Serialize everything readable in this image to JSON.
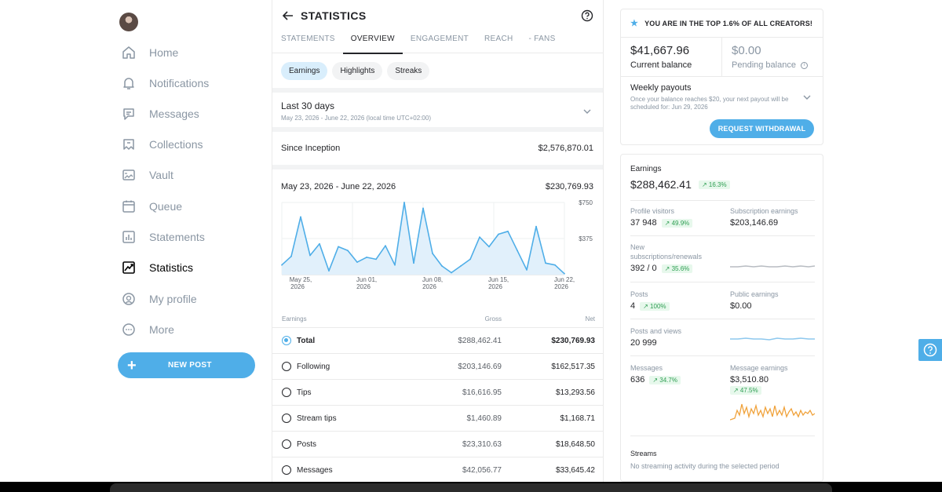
{
  "sidebar": {
    "items": [
      {
        "label": "Home",
        "icon": "home-icon"
      },
      {
        "label": "Notifications",
        "icon": "bell-icon"
      },
      {
        "label": "Messages",
        "icon": "message-icon"
      },
      {
        "label": "Collections",
        "icon": "bookmark-icon"
      },
      {
        "label": "Vault",
        "icon": "image-icon"
      },
      {
        "label": "Queue",
        "icon": "calendar-icon"
      },
      {
        "label": "Statements",
        "icon": "bar-chart-icon"
      },
      {
        "label": "Statistics",
        "icon": "trend-icon",
        "active": true
      },
      {
        "label": "My profile",
        "icon": "profile-icon"
      },
      {
        "label": "More",
        "icon": "more-icon"
      }
    ],
    "new_post": "NEW POST"
  },
  "header": {
    "title": "STATISTICS"
  },
  "tabs": [
    "STATEMENTS",
    "OVERVIEW",
    "ENGAGEMENT",
    "REACH",
    "- FANS"
  ],
  "chips": [
    "Earnings",
    "Highlights",
    "Streaks"
  ],
  "period": {
    "label": "Last 30 days",
    "range": "May 23, 2026 - June 22, 2026 (local time UTC+02:00)"
  },
  "since_inception": {
    "label": "Since Inception",
    "value": "$2,576,870.01"
  },
  "chart_header": {
    "range": "May 23, 2026 - June 22, 2026",
    "value": "$230,769.93"
  },
  "chart_data": {
    "type": "area",
    "title": "",
    "xlabel": "",
    "ylabel": "",
    "ylim": [
      0,
      750
    ],
    "yticks": [
      "$750",
      "$375"
    ],
    "xticks": [
      {
        "line1": "May 25,",
        "line2": "2026",
        "index": 2
      },
      {
        "line1": "Jun 01,",
        "line2": "2026",
        "index": 9
      },
      {
        "line1": "Jun 08,",
        "line2": "2026",
        "index": 16
      },
      {
        "line1": "Jun 15,",
        "line2": "2026",
        "index": 23
      },
      {
        "line1": "Jun 22,",
        "line2": "2026",
        "index": 30
      }
    ],
    "grid": true,
    "color": "#4faee8",
    "values": [
      100,
      190,
      600,
      200,
      320,
      40,
      290,
      250,
      130,
      180,
      160,
      300,
      100,
      750,
      120,
      690,
      220,
      90,
      20,
      90,
      160,
      390,
      290,
      420,
      450,
      250,
      50,
      500,
      120,
      100,
      10
    ]
  },
  "earnings_table": {
    "headers": {
      "name": "Earnings",
      "gross": "Gross",
      "net": "Net"
    },
    "rows": [
      {
        "name": "Total",
        "gross": "$288,462.41",
        "net": "$230,769.93",
        "selected": true
      },
      {
        "name": "Following",
        "gross": "$203,146.69",
        "net": "$162,517.35"
      },
      {
        "name": "Tips",
        "gross": "$16,616.95",
        "net": "$13,293.56"
      },
      {
        "name": "Stream tips",
        "gross": "$1,460.89",
        "net": "$1,168.71"
      },
      {
        "name": "Posts",
        "gross": "$23,310.63",
        "net": "$18,648.50"
      },
      {
        "name": "Messages",
        "gross": "$42,056.77",
        "net": "$33,645.42"
      }
    ]
  },
  "balance": {
    "top_badge": "YOU ARE IN THE TOP 1.6% OF ALL CREATORS!",
    "current_value": "$41,667.96",
    "current_label": "Current balance",
    "pending_value": "$0.00",
    "pending_label": "Pending balance",
    "payout_title": "Weekly payouts",
    "payout_sub": "Once your balance reaches $20, your next payout will be scheduled for: Jun 29, 2026",
    "withdraw_label": "REQUEST WITHDRAWAL"
  },
  "earnings_card": {
    "title": "Earnings",
    "total": "$288,462.41",
    "total_change": "↗ 16.3%",
    "profile_visitors_label": "Profile visitors",
    "profile_visitors_value": "37 948",
    "profile_visitors_change": "↗ 49.9%",
    "subscription_label": "Subscription earnings",
    "subscription_value": "$203,146.69",
    "new_subs_label_1": "New",
    "new_subs_label_2": "subscriptions/renewals",
    "new_subs_value": "392 / 0",
    "new_subs_change": "↗ 35.6%",
    "posts_label": "Posts",
    "posts_value": "4",
    "posts_change": "↗ 100%",
    "public_label": "Public earnings",
    "public_value": "$0.00",
    "posts_views_label": "Posts and views",
    "posts_views_value": "20 999",
    "messages_label": "Messages",
    "messages_value": "636",
    "messages_change": "↗ 34.7%",
    "message_earn_label": "Message earnings",
    "message_earn_value": "$3,510.80",
    "message_earn_change": "↗ 47.5%",
    "streams_label": "Streams",
    "streams_sub": "No streaming activity during the selected period"
  }
}
